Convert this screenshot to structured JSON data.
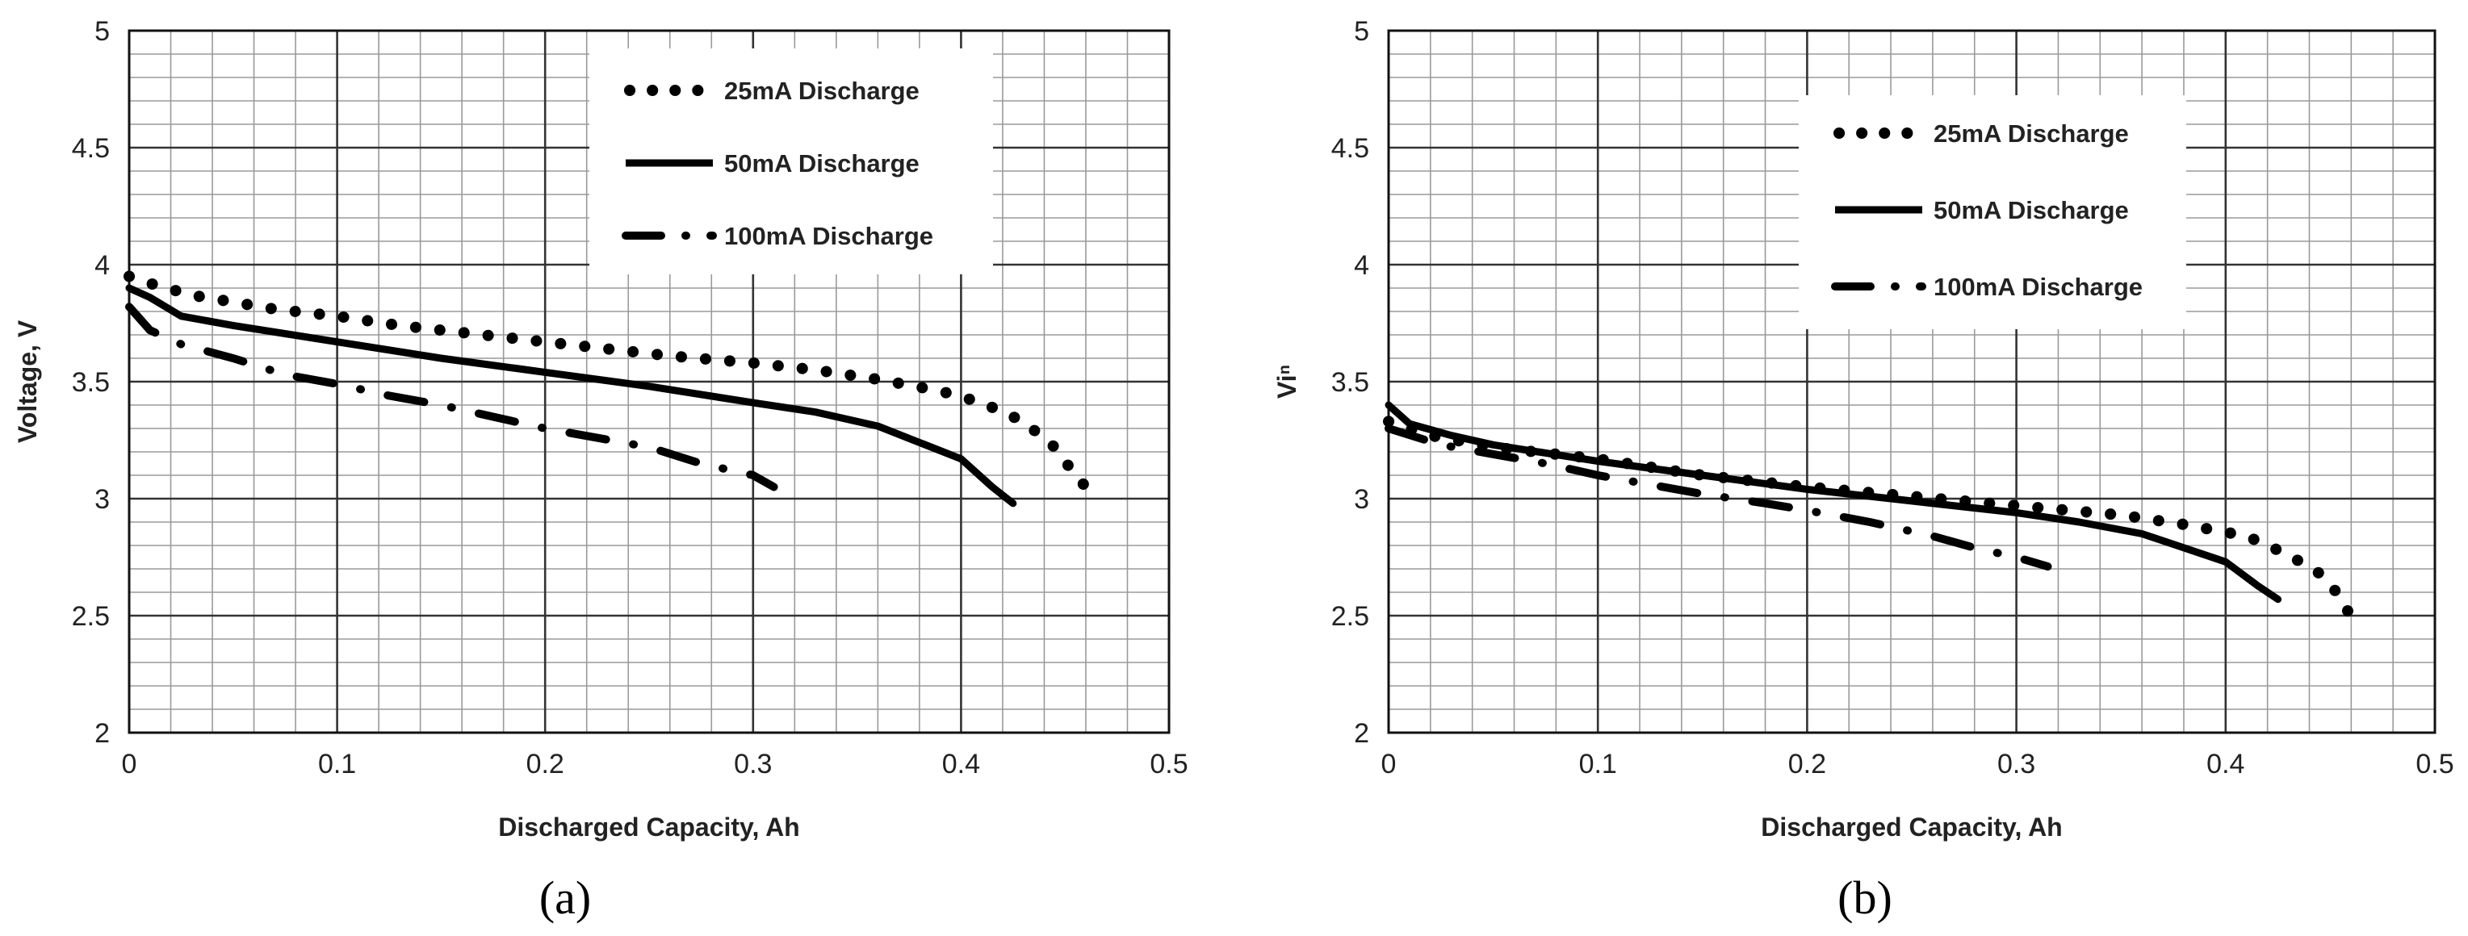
{
  "chart_data": [
    {
      "type": "line",
      "panel_label": "(a)",
      "xlabel": "Discharged Capacity, Ah",
      "ylabel": "Voltage, V",
      "xlim": [
        0,
        0.5
      ],
      "ylim": [
        2,
        5
      ],
      "x_ticks": [
        "0",
        "0.1",
        "0.2",
        "0.3",
        "0.4",
        "0.5"
      ],
      "y_ticks": [
        "2",
        "2.5",
        "3",
        "3.5",
        "4",
        "4.5",
        "5"
      ],
      "grid": true,
      "legend": "top-right",
      "series": [
        {
          "name": "25mA Discharge",
          "style": "dotted",
          "points": [
            [
              0,
              3.95
            ],
            [
              0.01,
              3.92
            ],
            [
              0.03,
              3.87
            ],
            [
              0.05,
              3.84
            ],
            [
              0.07,
              3.81
            ],
            [
              0.1,
              3.78
            ],
            [
              0.13,
              3.74
            ],
            [
              0.16,
              3.71
            ],
            [
              0.2,
              3.67
            ],
            [
              0.23,
              3.64
            ],
            [
              0.26,
              3.61
            ],
            [
              0.3,
              3.58
            ],
            [
              0.33,
              3.55
            ],
            [
              0.36,
              3.51
            ],
            [
              0.39,
              3.46
            ],
            [
              0.41,
              3.41
            ],
            [
              0.43,
              3.33
            ],
            [
              0.445,
              3.22
            ],
            [
              0.455,
              3.1
            ],
            [
              0.46,
              3.05
            ]
          ]
        },
        {
          "name": "50mA Discharge",
          "style": "solid",
          "points": [
            [
              0,
              3.9
            ],
            [
              0.01,
              3.86
            ],
            [
              0.025,
              3.78
            ],
            [
              0.05,
              3.74
            ],
            [
              0.1,
              3.67
            ],
            [
              0.15,
              3.6
            ],
            [
              0.2,
              3.54
            ],
            [
              0.25,
              3.48
            ],
            [
              0.3,
              3.41
            ],
            [
              0.33,
              3.37
            ],
            [
              0.36,
              3.31
            ],
            [
              0.38,
              3.24
            ],
            [
              0.4,
              3.17
            ],
            [
              0.415,
              3.05
            ],
            [
              0.425,
              2.98
            ]
          ]
        },
        {
          "name": "100mA Discharge",
          "style": "dash-dot",
          "points": [
            [
              0,
              3.82
            ],
            [
              0.01,
              3.72
            ],
            [
              0.025,
              3.66
            ],
            [
              0.05,
              3.6
            ],
            [
              0.075,
              3.53
            ],
            [
              0.1,
              3.49
            ],
            [
              0.125,
              3.44
            ],
            [
              0.15,
              3.4
            ],
            [
              0.175,
              3.35
            ],
            [
              0.2,
              3.3
            ],
            [
              0.225,
              3.26
            ],
            [
              0.25,
              3.22
            ],
            [
              0.275,
              3.15
            ],
            [
              0.3,
              3.1
            ],
            [
              0.31,
              3.05
            ]
          ]
        }
      ]
    },
    {
      "type": "line",
      "panel_label": "(b)",
      "xlabel": "Discharged Capacity, Ah",
      "ylabel": "Viⁿ",
      "xlim": [
        0,
        0.5
      ],
      "ylim": [
        2,
        5
      ],
      "x_ticks": [
        "0",
        "0.1",
        "0.2",
        "0.3",
        "0.4",
        "0.5"
      ],
      "y_ticks": [
        "2",
        "2.5",
        "3",
        "3.5",
        "4",
        "4.5",
        "5"
      ],
      "grid": true,
      "legend": "top-right",
      "series": [
        {
          "name": "25mA Discharge",
          "style": "dotted",
          "points": [
            [
              0,
              3.33
            ],
            [
              0.02,
              3.27
            ],
            [
              0.05,
              3.22
            ],
            [
              0.1,
              3.17
            ],
            [
              0.15,
              3.1
            ],
            [
              0.2,
              3.05
            ],
            [
              0.25,
              3.01
            ],
            [
              0.3,
              2.97
            ],
            [
              0.35,
              2.93
            ],
            [
              0.38,
              2.89
            ],
            [
              0.41,
              2.84
            ],
            [
              0.43,
              2.76
            ],
            [
              0.445,
              2.68
            ],
            [
              0.455,
              2.58
            ],
            [
              0.46,
              2.49
            ]
          ]
        },
        {
          "name": "50mA Discharge",
          "style": "solid",
          "points": [
            [
              0,
              3.4
            ],
            [
              0.01,
              3.32
            ],
            [
              0.03,
              3.27
            ],
            [
              0.05,
              3.23
            ],
            [
              0.1,
              3.16
            ],
            [
              0.15,
              3.1
            ],
            [
              0.2,
              3.04
            ],
            [
              0.25,
              2.99
            ],
            [
              0.3,
              2.94
            ],
            [
              0.33,
              2.9
            ],
            [
              0.36,
              2.85
            ],
            [
              0.38,
              2.79
            ],
            [
              0.4,
              2.73
            ],
            [
              0.415,
              2.63
            ],
            [
              0.425,
              2.57
            ]
          ]
        },
        {
          "name": "100mA Discharge",
          "style": "dash-dot",
          "points": [
            [
              0,
              3.3
            ],
            [
              0.025,
              3.23
            ],
            [
              0.05,
              3.19
            ],
            [
              0.075,
              3.15
            ],
            [
              0.1,
              3.1
            ],
            [
              0.125,
              3.06
            ],
            [
              0.15,
              3.02
            ],
            [
              0.18,
              2.98
            ],
            [
              0.2,
              2.95
            ],
            [
              0.23,
              2.9
            ],
            [
              0.26,
              2.84
            ],
            [
              0.28,
              2.79
            ],
            [
              0.3,
              2.75
            ],
            [
              0.315,
              2.71
            ]
          ]
        }
      ]
    }
  ]
}
